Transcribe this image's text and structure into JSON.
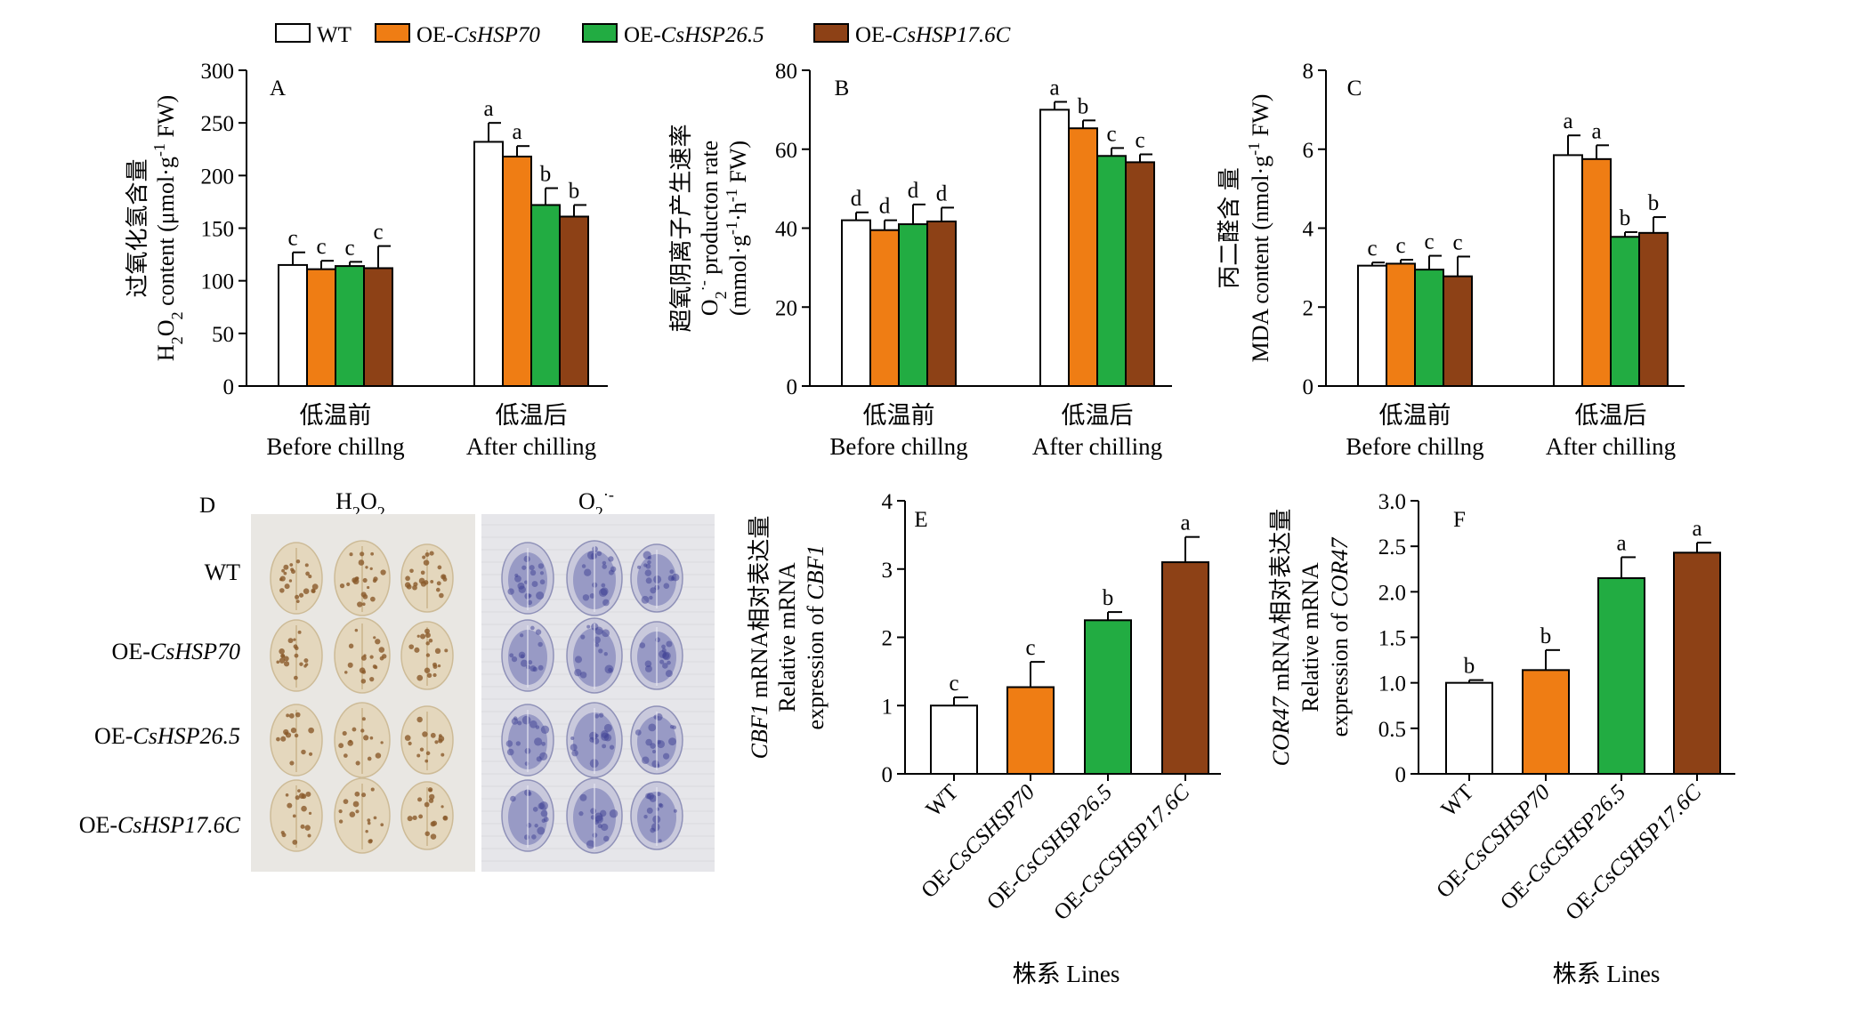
{
  "colors": {
    "WT": "#ffffff",
    "HSP70": "#ef7d14",
    "HSP26": "#22ac42",
    "HSP17": "#8d4116",
    "axis": "#000000"
  },
  "legend": [
    {
      "prefix": "WT",
      "gene": "",
      "color_key": "WT"
    },
    {
      "prefix": "OE-",
      "gene": "CsHSP70",
      "color_key": "HSP70"
    },
    {
      "prefix": "OE-",
      "gene": "CsHSP26.5",
      "color_key": "HSP26"
    },
    {
      "prefix": "OE-",
      "gene": "CsHSP17.6C",
      "color_key": "HSP17"
    }
  ],
  "chart_data": [
    {
      "id": "A",
      "type": "bar",
      "panel_label": "A",
      "ylabel_cn": "过氧化氢含量",
      "ylabel_en": "H2O2 content (μmol·g-1 FW)",
      "ylim": [
        0,
        300
      ],
      "yticks": [
        "0",
        "50",
        "100",
        "150",
        "200",
        "250",
        "300"
      ],
      "categories": [
        {
          "cn": "低温前",
          "en": "Before chillng"
        },
        {
          "cn": "低温后",
          "en": "After chilling"
        }
      ],
      "series": [
        {
          "name": "WT",
          "values": [
            115,
            232
          ],
          "errors": [
            12,
            18
          ],
          "letters": [
            "c",
            "a"
          ]
        },
        {
          "name": "OE-CsHSP70",
          "values": [
            111,
            218
          ],
          "errors": [
            8,
            10
          ],
          "letters": [
            "c",
            "a"
          ]
        },
        {
          "name": "OE-CsHSP26.5",
          "values": [
            114,
            172
          ],
          "errors": [
            4,
            16
          ],
          "letters": [
            "c",
            "b"
          ]
        },
        {
          "name": "OE-CsHSP17.6C",
          "values": [
            112,
            161
          ],
          "errors": [
            21,
            11
          ],
          "letters": [
            "c",
            "b"
          ]
        }
      ]
    },
    {
      "id": "B",
      "type": "bar",
      "panel_label": "B",
      "ylabel_cn": "超氧阴离子产生速率",
      "ylabel_en": "O2·- producton rate",
      "ylabel_en2": "(mmol·g-1·h-1 FW)",
      "ylim": [
        0,
        80
      ],
      "yticks": [
        "0",
        "20",
        "40",
        "60",
        "80"
      ],
      "categories": [
        {
          "cn": "低温前",
          "en": "Before chillng"
        },
        {
          "cn": "低温后",
          "en": "After chilling"
        }
      ],
      "series": [
        {
          "name": "WT",
          "values": [
            42,
            70
          ],
          "errors": [
            2,
            2
          ],
          "letters": [
            "d",
            "a"
          ]
        },
        {
          "name": "OE-CsHSP70",
          "values": [
            39.5,
            65.3
          ],
          "errors": [
            2.5,
            2
          ],
          "letters": [
            "d",
            "b"
          ]
        },
        {
          "name": "OE-CsHSP26.5",
          "values": [
            41,
            58.3
          ],
          "errors": [
            5,
            2
          ],
          "letters": [
            "d",
            "c"
          ]
        },
        {
          "name": "OE-CsHSP17.6C",
          "values": [
            41.7,
            56.7
          ],
          "errors": [
            3.5,
            2
          ],
          "letters": [
            "d",
            "c"
          ]
        }
      ]
    },
    {
      "id": "C",
      "type": "bar",
      "panel_label": "C",
      "ylabel_cn": "丙二醛含 量",
      "ylabel_en": "MDA content (nmol·g-1 FW)",
      "ylim": [
        0,
        8
      ],
      "yticks": [
        "0",
        "2",
        "4",
        "6",
        "8"
      ],
      "categories": [
        {
          "cn": "低温前",
          "en": "Before chillng"
        },
        {
          "cn": "低温后",
          "en": "After chilling"
        }
      ],
      "series": [
        {
          "name": "WT",
          "values": [
            3.05,
            5.85
          ],
          "errors": [
            0.08,
            0.5
          ],
          "letters": [
            "c",
            "a"
          ]
        },
        {
          "name": "OE-CsHSP70",
          "values": [
            3.1,
            5.75
          ],
          "errors": [
            0.1,
            0.35
          ],
          "letters": [
            "c",
            "a"
          ]
        },
        {
          "name": "OE-CsHSP26.5",
          "values": [
            2.95,
            3.78
          ],
          "errors": [
            0.35,
            0.12
          ],
          "letters": [
            "c",
            "b"
          ]
        },
        {
          "name": "OE-CsHSP17.6C",
          "values": [
            2.78,
            3.88
          ],
          "errors": [
            0.5,
            0.4
          ],
          "letters": [
            "c",
            "b"
          ]
        }
      ]
    },
    {
      "id": "E",
      "type": "bar",
      "panel_label": "E",
      "ylabel_cn_gene": "CBF1",
      "ylabel_cn": " mRNA相对表达量",
      "ylabel_en": "Relative mRNA",
      "ylabel_en2_prefix": "expression of ",
      "ylabel_en2_gene": "CBF1",
      "xlabel": "株系 Lines",
      "ylim": [
        0,
        4
      ],
      "yticks": [
        "0",
        "1",
        "2",
        "3",
        "4"
      ],
      "categories": [
        "WT",
        "OE-CsCSHSP70",
        "OE-CsCSHSP26.5",
        "OE-CsCSHSP17.6C"
      ],
      "values": [
        1.0,
        1.27,
        2.25,
        3.1
      ],
      "errors": [
        0.12,
        0.37,
        0.12,
        0.37
      ],
      "letters": [
        "c",
        "c",
        "b",
        "a"
      ]
    },
    {
      "id": "F",
      "type": "bar",
      "panel_label": "F",
      "ylabel_cn_gene": "COR47",
      "ylabel_cn": " mRNA相对表达量",
      "ylabel_en": "Relative mRNA",
      "ylabel_en2_prefix": "expression of ",
      "ylabel_en2_gene": "COR47",
      "xlabel": "株系 Lines",
      "ylim": [
        0,
        3.0
      ],
      "yticks": [
        "0",
        "0.5",
        "1.0",
        "1.5",
        "2.0",
        "2.5",
        "3.0"
      ],
      "categories": [
        "WT",
        "OE-CsCSHSP70",
        "OE-CsCSHSP26.5",
        "OE-CsCSHSP17.6C"
      ],
      "values": [
        1.0,
        1.14,
        2.15,
        2.43
      ],
      "errors": [
        0.03,
        0.22,
        0.23,
        0.11
      ],
      "letters": [
        "b",
        "b",
        "a",
        "a"
      ]
    }
  ],
  "panel_d": {
    "panel_label": "D",
    "col_titles": [
      "H2O2",
      "O2·-"
    ],
    "rows": [
      {
        "prefix": "WT",
        "gene": ""
      },
      {
        "prefix": "OE-",
        "gene": "CsHSP70"
      },
      {
        "prefix": "OE-",
        "gene": "CsHSP26.5"
      },
      {
        "prefix": "OE-",
        "gene": "CsHSP17.6C"
      }
    ]
  }
}
